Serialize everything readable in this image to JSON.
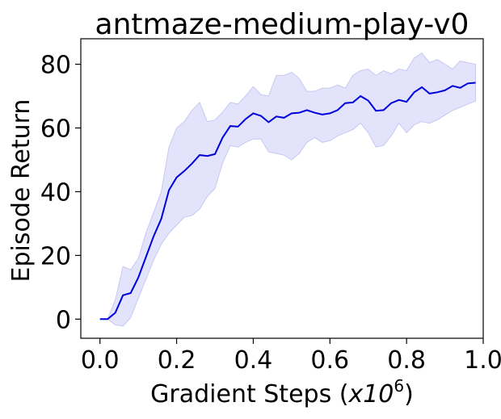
{
  "chart_data": {
    "type": "line",
    "title": "antmaze-medium-play-v0",
    "xlabel_prefix": "Gradient Steps (",
    "xlabel_var": "x10",
    "xlabel_sup": "6",
    "xlabel_suffix": ")",
    "ylabel": "Episode Return",
    "xlim": [
      -0.05,
      1.0
    ],
    "ylim": [
      -6,
      88
    ],
    "xticks": [
      0.0,
      0.2,
      0.4,
      0.6,
      0.8,
      1.0
    ],
    "xtick_labels": [
      "0.0",
      "0.2",
      "0.4",
      "0.6",
      "0.8",
      "1.0"
    ],
    "yticks": [
      0,
      20,
      40,
      60,
      80
    ],
    "ytick_labels": [
      "0",
      "20",
      "40",
      "60",
      "80"
    ],
    "grid": false,
    "colors": {
      "line": "#0000dd",
      "band": "#e3e3fb",
      "band_edge": "#c8c8f2"
    },
    "series": [
      {
        "x": [
          0.0,
          0.02,
          0.04,
          0.06,
          0.08,
          0.1,
          0.12,
          0.14,
          0.16,
          0.18,
          0.2,
          0.22,
          0.24,
          0.26,
          0.28,
          0.3,
          0.32,
          0.34,
          0.36,
          0.38,
          0.4,
          0.42,
          0.44,
          0.46,
          0.48,
          0.5,
          0.52,
          0.54,
          0.56,
          0.58,
          0.6,
          0.62,
          0.64,
          0.66,
          0.68,
          0.7,
          0.72,
          0.74,
          0.76,
          0.78,
          0.8,
          0.82,
          0.84,
          0.86,
          0.88,
          0.9,
          0.92,
          0.94,
          0.96,
          0.98
        ],
        "mean": [
          0.0,
          0.0,
          2.0,
          7.5,
          8.2,
          13.0,
          19.5,
          26.0,
          31.5,
          40.5,
          44.5,
          46.5,
          48.8,
          51.5,
          51.2,
          51.8,
          57.0,
          60.6,
          60.4,
          62.8,
          64.6,
          63.8,
          61.8,
          63.6,
          63.2,
          64.6,
          64.8,
          65.6,
          64.8,
          64.2,
          64.6,
          65.6,
          67.8,
          68.0,
          70.0,
          68.6,
          65.4,
          65.6,
          67.8,
          68.8,
          68.2,
          71.2,
          72.8,
          70.8,
          71.2,
          71.8,
          73.2,
          72.6,
          74.0,
          74.2
        ],
        "upper": [
          0.0,
          0.0,
          6.0,
          16.5,
          15.5,
          19.0,
          27.0,
          33.5,
          40.0,
          54.0,
          60.0,
          62.0,
          65.5,
          68.0,
          62.0,
          62.5,
          65.0,
          68.0,
          67.5,
          70.0,
          73.0,
          70.5,
          70.0,
          76.5,
          76.5,
          77.5,
          75.5,
          71.5,
          71.5,
          72.5,
          72.5,
          73.5,
          72.5,
          76.5,
          78.0,
          78.5,
          76.5,
          78.0,
          77.0,
          78.5,
          78.0,
          82.0,
          83.5,
          80.5,
          81.5,
          80.0,
          78.5,
          81.0,
          80.5,
          80.0
        ],
        "lower": [
          0.0,
          0.0,
          -1.8,
          -2.2,
          0.5,
          6.5,
          12.5,
          18.5,
          23.5,
          27.0,
          29.5,
          32.0,
          32.5,
          34.5,
          38.5,
          41.0,
          49.0,
          54.5,
          54.0,
          55.5,
          56.5,
          56.5,
          52.5,
          52.0,
          51.5,
          50.0,
          52.0,
          55.5,
          57.0,
          55.5,
          56.0,
          57.5,
          58.5,
          59.5,
          61.5,
          58.5,
          54.0,
          54.5,
          57.5,
          61.5,
          58.5,
          61.0,
          62.0,
          61.5,
          62.5,
          64.0,
          65.5,
          66.5,
          67.5,
          68.5
        ]
      }
    ]
  }
}
